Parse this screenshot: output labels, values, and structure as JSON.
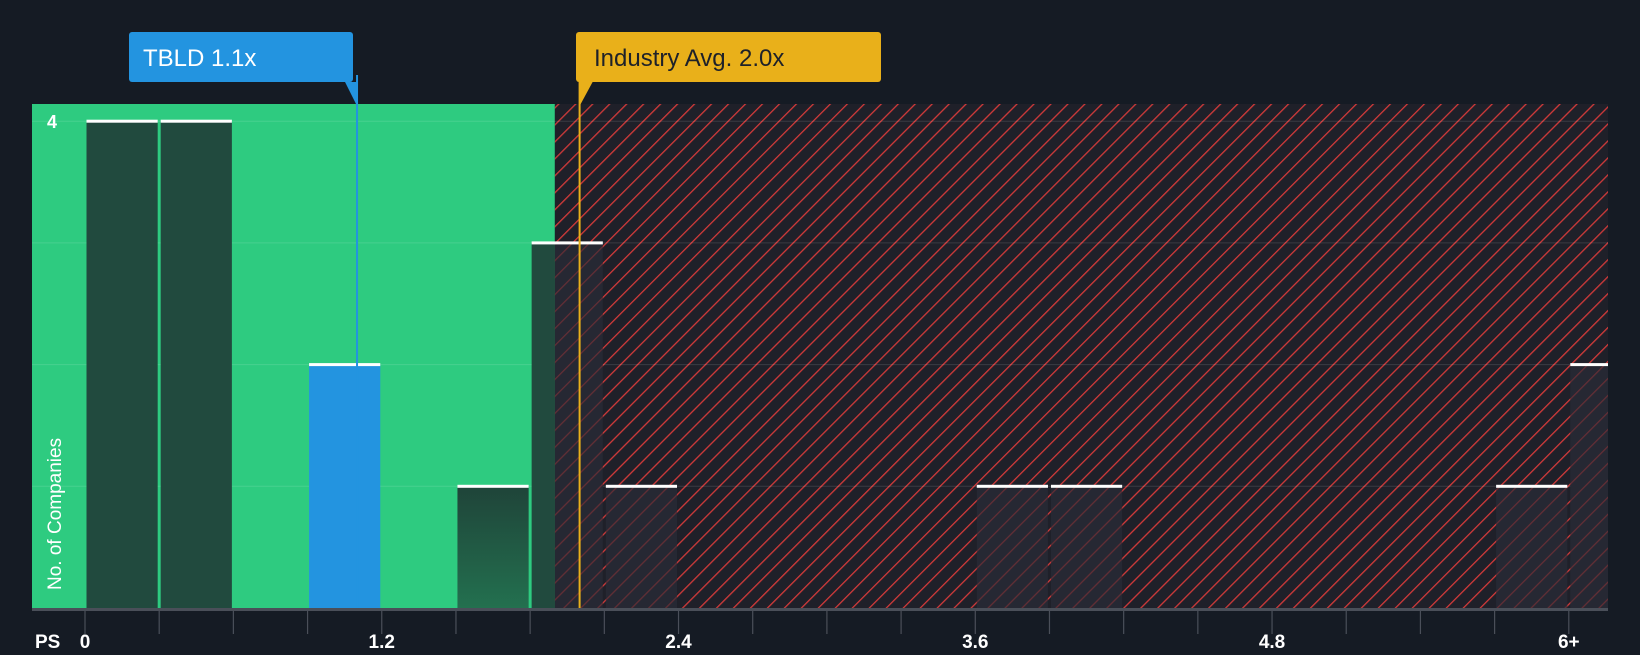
{
  "chart_data": {
    "type": "bar",
    "title": "",
    "xlabel": "PS",
    "ylabel": "No. of Companies",
    "xlim": [
      0,
      6.15
    ],
    "ylim": [
      0,
      4.14
    ],
    "x_ticks": [
      "0",
      "1.2",
      "2.4",
      "3.6",
      "4.8",
      "6+"
    ],
    "x_tick_values": [
      0,
      1.2,
      2.4,
      3.6,
      4.8,
      6.0
    ],
    "y_ticks": [
      "4"
    ],
    "y_tick_values": [
      4
    ],
    "gridlines": [
      1,
      2,
      3,
      4
    ],
    "bin_width": 0.3,
    "bins": [
      {
        "start": 0.0,
        "count": 4
      },
      {
        "start": 0.3,
        "count": 4
      },
      {
        "start": 0.6,
        "count": 0
      },
      {
        "start": 0.9,
        "count": 2,
        "highlight": true
      },
      {
        "start": 1.2,
        "count": 0
      },
      {
        "start": 1.5,
        "count": 1
      },
      {
        "start": 1.8,
        "count": 3
      },
      {
        "start": 2.1,
        "count": 1
      },
      {
        "start": 2.4,
        "count": 0
      },
      {
        "start": 2.7,
        "count": 0
      },
      {
        "start": 3.0,
        "count": 0
      },
      {
        "start": 3.3,
        "count": 0
      },
      {
        "start": 3.6,
        "count": 1
      },
      {
        "start": 3.9,
        "count": 1
      },
      {
        "start": 4.2,
        "count": 0
      },
      {
        "start": 4.5,
        "count": 0
      },
      {
        "start": 4.8,
        "count": 0
      },
      {
        "start": 5.1,
        "count": 0
      },
      {
        "start": 5.4,
        "count": 0
      },
      {
        "start": 5.7,
        "count": 1
      },
      {
        "start": 6.0,
        "count": 2
      }
    ],
    "fair_value_upper": 1.9,
    "company": {
      "label": "TBLD 1.1x",
      "value": 1.1
    },
    "industry": {
      "label": "Industry Avg. 2.0x",
      "value": 2.0
    },
    "colors": {
      "background": "#151b24",
      "fair_zone": "#2ecb80",
      "bar_in_fair": "#214a3e",
      "bar_over": "#1f2029",
      "highlight": "#2394e0",
      "industry": "#e9b01a",
      "hatch": "#d23a3a"
    }
  }
}
